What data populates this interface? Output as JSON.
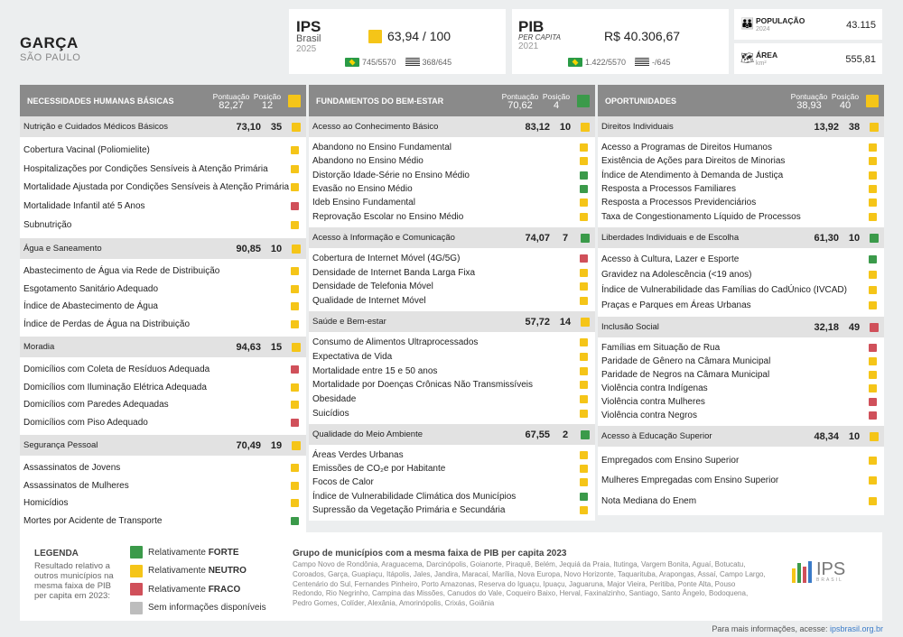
{
  "header": {
    "city": "GARÇA",
    "state": "SÃO PAULO"
  },
  "ips": {
    "title": "IPS",
    "sub": "Brasil",
    "year": "2025",
    "value": "63,94 / 100",
    "rank_br": "745/5570",
    "rank_sp": "368/645",
    "color": "#f5c518"
  },
  "pib": {
    "title": "PIB",
    "sub": "PER CAPITA",
    "year": "2021",
    "value": "R$ 40.306,67",
    "rank_br": "1.422/5570",
    "rank_sp": "-/645"
  },
  "pop": {
    "label": "POPULAÇÃO",
    "year": "2024",
    "value": "43.115"
  },
  "area": {
    "label": "ÁREA",
    "unit": "km²",
    "value": "555,81"
  },
  "score_label": "Pontuação",
  "pos_label": "Posição",
  "columns": [
    {
      "name": "NECESSIDADES HUMANAS BÁSICAS",
      "score": "82,27",
      "pos": "12",
      "c": "y",
      "groups": [
        {
          "name": "Nutrição e Cuidados Médicos Básicos",
          "score": "73,10",
          "pos": "35",
          "c": "y",
          "h": 112,
          "items": [
            [
              "Cobertura Vacinal (Poliomielite)",
              "y"
            ],
            [
              "Hospitalizações por Condições Sensíveis à Atenção Primária",
              "y"
            ],
            [
              "Mortalidade Ajustada por Condições Sensíveis à Atenção Primária",
              "y"
            ],
            [
              "Mortalidade Infantil até 5 Anos",
              "r"
            ],
            [
              "Subnutrição",
              "y"
            ]
          ]
        },
        {
          "name": "Água e Saneamento",
          "score": "90,85",
          "pos": "10",
          "c": "y",
          "h": 86,
          "items": [
            [
              "Abastecimento de Água via Rede de Distribuição",
              "y"
            ],
            [
              "Esgotamento Sanitário Adequado",
              "y"
            ],
            [
              "Índice de Abastecimento de Água",
              "y"
            ],
            [
              "Índice de Perdas de Água na Distribuição",
              "y"
            ]
          ]
        },
        {
          "name": "Moradia",
          "score": "94,63",
          "pos": "15",
          "c": "y",
          "h": 86,
          "items": [
            [
              "Domicílios com Coleta de Resíduos Adequada",
              "r"
            ],
            [
              "Domicílios com Iluminação Elétrica Adequada",
              "y"
            ],
            [
              "Domicílios com Paredes Adequadas",
              "y"
            ],
            [
              "Domicílios com Piso Adequado",
              "r"
            ]
          ]
        },
        {
          "name": "Segurança Pessoal",
          "score": "70,49",
          "pos": "19",
          "c": "y",
          "h": 86,
          "items": [
            [
              "Assassinatos de Jovens",
              "y"
            ],
            [
              "Assassinatos de Mulheres",
              "y"
            ],
            [
              "Homicídios",
              "y"
            ],
            [
              "Mortes por Acidente de Transporte",
              "g"
            ]
          ]
        }
      ]
    },
    {
      "name": "FUNDAMENTOS DO BEM-ESTAR",
      "score": "70,62",
      "pos": "4",
      "c": "g",
      "groups": [
        {
          "name": "Acesso ao Conhecimento Básico",
          "score": "83,12",
          "pos": "10",
          "c": "y",
          "h": 100,
          "items": [
            [
              "Abandono no Ensino Fundamental",
              "y"
            ],
            [
              "Abandono no Ensino Médio",
              "y"
            ],
            [
              "Distorção Idade-Série no Ensino Médio",
              "g"
            ],
            [
              "Evasão no Ensino Médio",
              "g"
            ],
            [
              "Ideb Ensino Fundamental",
              "y"
            ],
            [
              "Reprovação Escolar no Ensino Médio",
              "y"
            ]
          ]
        },
        {
          "name": "Acesso à Informação e Comunicação",
          "score": "74,07",
          "pos": "7",
          "c": "g",
          "h": 70,
          "items": [
            [
              "Cobertura de Internet Móvel (4G/5G)",
              "r"
            ],
            [
              "Densidade de Internet Banda Larga Fixa",
              "y"
            ],
            [
              "Densidade de Telefonia Móvel",
              "y"
            ],
            [
              "Qualidade de Internet Móvel",
              "y"
            ]
          ]
        },
        {
          "name": "Saúde e Bem-estar",
          "score": "57,72",
          "pos": "14",
          "c": "y",
          "h": 102,
          "items": [
            [
              "Consumo de Alimentos Ultraprocessados",
              "y"
            ],
            [
              "Expectativa de Vida",
              "y"
            ],
            [
              "Mortalidade entre 15 e 50 anos",
              "y"
            ],
            [
              "Mortalidade por Doenças Crônicas Não Transmissíveis",
              "y"
            ],
            [
              "Obesidade",
              "y"
            ],
            [
              "Suicídios",
              "y"
            ]
          ]
        },
        {
          "name": "Qualidade do Meio Ambiente",
          "score": "67,55",
          "pos": "2",
          "c": "g",
          "h": 84,
          "items": [
            [
              "Áreas Verdes Urbanas",
              "y"
            ],
            [
              "Emissões de CO₂e por Habitante",
              "y"
            ],
            [
              "Focos de Calor",
              "y"
            ],
            [
              "Índice de Vulnerabilidade Climática dos Municípios",
              "g"
            ],
            [
              "Supressão da Vegetação Primária e Secundária",
              "y"
            ]
          ]
        }
      ]
    },
    {
      "name": "OPORTUNIDADES",
      "score": "38,93",
      "pos": "40",
      "c": "y",
      "groups": [
        {
          "name": "Direitos Individuais",
          "score": "13,92",
          "pos": "38",
          "c": "y",
          "h": 100,
          "items": [
            [
              "Acesso a Programas de Direitos Humanos",
              "y"
            ],
            [
              "Existência de Ações para Direitos de Minorias",
              "y"
            ],
            [
              "Índice de Atendimento à Demanda de Justiça",
              "y"
            ],
            [
              "Resposta a Processos Familiares",
              "y"
            ],
            [
              "Resposta a Processos Previdenciários",
              "y"
            ],
            [
              "Taxa de Congestionamento Líquido de Processos",
              "y"
            ]
          ]
        },
        {
          "name": "Liberdades Individuais e de Escolha",
          "score": "61,30",
          "pos": "10",
          "c": "g",
          "h": 76,
          "items": [
            [
              "Acesso à Cultura, Lazer e Esporte",
              "g"
            ],
            [
              "Gravidez na Adolescência (<19 anos)",
              "y"
            ],
            [
              "Índice de Vulnerabilidade das Famílias do CadÚnico (IVCAD)",
              "y"
            ],
            [
              "Praças e Parques em Áreas Urbanas",
              "y"
            ]
          ]
        },
        {
          "name": "Inclusão Social",
          "score": "32,18",
          "pos": "49",
          "c": "r",
          "h": 98,
          "items": [
            [
              "Famílias em Situação de Rua",
              "r"
            ],
            [
              "Paridade de Gênero na Câmara Municipal",
              "y"
            ],
            [
              "Paridade de Negros na Câmara Municipal",
              "y"
            ],
            [
              "Violência contra Indígenas",
              "y"
            ],
            [
              "Violência contra Mulheres",
              "r"
            ],
            [
              "Violência contra Negros",
              "r"
            ]
          ]
        },
        {
          "name": "Acesso à Educação Superior",
          "score": "48,34",
          "pos": "10",
          "c": "y",
          "h": 76,
          "items": [
            [
              "Empregados com Ensino Superior",
              "y"
            ],
            [
              "Mulheres Empregadas com Ensino Superior",
              "y"
            ],
            [
              "Nota Mediana do Enem",
              "y"
            ]
          ]
        }
      ]
    }
  ],
  "legend": {
    "title": "LEGENDA",
    "desc": "Resultado relativo a outros municípios na mesma faixa de PIB per capita em 2023:",
    "items": [
      {
        "c": "g",
        "pre": "Relativamente ",
        "b": "FORTE"
      },
      {
        "c": "y",
        "pre": "Relativamente ",
        "b": "NEUTRO"
      },
      {
        "c": "r",
        "pre": "Relativamente ",
        "b": "FRACO"
      },
      {
        "c": "n",
        "pre": "Sem informações disponíveis",
        "b": ""
      }
    ],
    "group_title": "Grupo de municípios com a mesma faixa de PIB per capita 2023",
    "group_text": "Campo Novo de Rondônia, Araguacema, Darcinópolis, Goianorte, Piraquê, Belém, Jequiá da Praia, Itutinga, Vargem Bonita, Aguaí, Botucatu, Coroados, Garça, Guapiaçu, Itápolis, Jales, Jandira, Maracaí, Marília, Nova Europa, Novo Horizonte, Taquarituba, Arapongas, Assaí, Campo Largo, Centenário do Sul, Fernandes Pinheiro, Porto Amazonas, Reserva do Iguaçu, Ipuaçu, Jaguaruna, Major Vieira, Peritiba, Ponte Alta, Pouso Redondo, Rio Negrinho, Campina das Missões, Canudos do Vale, Coqueiro Baixo, Herval, Faxinalzinho, Santiago, Santo Ângelo, Bodoquena, Pedro Gomes, Colíder, Alexânia, Amorinópolis, Crixás, Goiânia",
    "logo": "IPS",
    "logo_sub": "BRASIL"
  },
  "footer": {
    "text": "Para mais informações, acesse: ",
    "link": "ipsbrasil.org.br"
  }
}
